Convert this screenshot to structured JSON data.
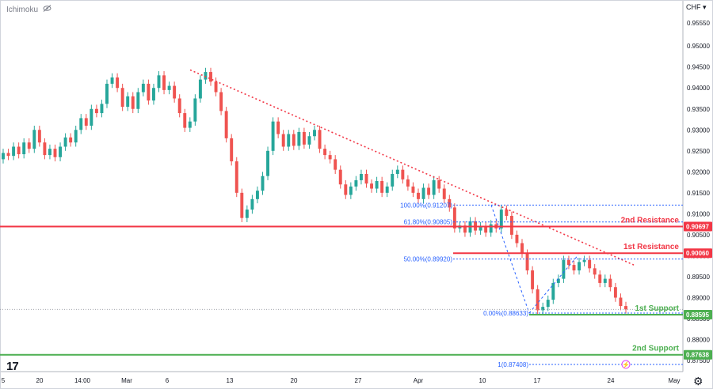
{
  "header": {
    "indicator": "Ichimoku",
    "currency": "CHF"
  },
  "icons": {
    "visibility": "eye-off-icon",
    "settings": "gear-icon",
    "logo": "tradingview-logo-icon",
    "alert": "lightning-icon"
  },
  "logo_text": "17",
  "chart_data": {
    "type": "candlestick",
    "y_ticks": [
      "0.95550",
      "0.95000",
      "0.94500",
      "0.94000",
      "0.93500",
      "0.93000",
      "0.92500",
      "0.92000",
      "0.91500",
      "0.91000",
      "0.90500",
      "0.90000",
      "0.89500",
      "0.89000",
      "0.88500",
      "0.88000",
      "0.87500"
    ],
    "ylim": [
      0.8735,
      0.9575
    ],
    "x_ticks": [
      "5",
      "20",
      "14:00",
      "Mar",
      "6",
      "13",
      "20",
      "27",
      "Apr",
      "10",
      "17",
      "24",
      "May"
    ],
    "colors": {
      "up": "#26a69a",
      "down": "#ef5350",
      "resistance": "#f23645",
      "support": "#4caf50",
      "fib": "#2962ff",
      "trend": "#f23645"
    },
    "levels": [
      {
        "name": "2nd Resistance",
        "price": 0.90697,
        "price_label": "0.90697",
        "color": "#f23645"
      },
      {
        "name": "1st Resistance",
        "price": 0.9006,
        "price_label": "0.90060",
        "color": "#f23645"
      },
      {
        "name": "1st Support",
        "price": 0.88595,
        "price_label": "0.88595",
        "color": "#4caf50"
      },
      {
        "name": "2nd Support",
        "price": 0.87638,
        "price_label": "0.87638",
        "color": "#4caf50"
      }
    ],
    "fibonacci": [
      {
        "label": "100.00%(0.91207)",
        "price": 0.91207
      },
      {
        "label": "61.80%(0.90805)",
        "price": 0.90805
      },
      {
        "label": "50.00%(0.89920)",
        "price": 0.8992
      },
      {
        "label": "0.00%(0.88633)",
        "price": 0.88633
      },
      {
        "label": "1(0.87408)",
        "price": 0.87408
      }
    ],
    "trendline": {
      "from_price": 0.9443,
      "to_price": 0.8978,
      "style": "dotted"
    },
    "current_price": 0.8872,
    "candles": [
      [
        0.923,
        0.9245
      ],
      [
        0.9245,
        0.9238
      ],
      [
        0.9238,
        0.926
      ],
      [
        0.926,
        0.9242
      ],
      [
        0.9242,
        0.927
      ],
      [
        0.927,
        0.9255
      ],
      [
        0.9255,
        0.93
      ],
      [
        0.93,
        0.927
      ],
      [
        0.927,
        0.924
      ],
      [
        0.924,
        0.9255
      ],
      [
        0.9255,
        0.9235
      ],
      [
        0.9235,
        0.926
      ],
      [
        0.926,
        0.9282
      ],
      [
        0.9282,
        0.927
      ],
      [
        0.927,
        0.93
      ],
      [
        0.93,
        0.9328
      ],
      [
        0.9328,
        0.931
      ],
      [
        0.931,
        0.935
      ],
      [
        0.935,
        0.934
      ],
      [
        0.934,
        0.9362
      ],
      [
        0.9362,
        0.941
      ],
      [
        0.941,
        0.9425
      ],
      [
        0.9425,
        0.94
      ],
      [
        0.94,
        0.9355
      ],
      [
        0.9355,
        0.938
      ],
      [
        0.938,
        0.935
      ],
      [
        0.935,
        0.939
      ],
      [
        0.939,
        0.941
      ],
      [
        0.941,
        0.937
      ],
      [
        0.937,
        0.94
      ],
      [
        0.94,
        0.943
      ],
      [
        0.943,
        0.9395
      ],
      [
        0.9395,
        0.9405
      ],
      [
        0.9405,
        0.9375
      ],
      [
        0.9375,
        0.934
      ],
      [
        0.934,
        0.9305
      ],
      [
        0.9305,
        0.932
      ],
      [
        0.932,
        0.9375
      ],
      [
        0.9375,
        0.942
      ],
      [
        0.942,
        0.9438
      ],
      [
        0.9438,
        0.9415
      ],
      [
        0.9415,
        0.939
      ],
      [
        0.939,
        0.9345
      ],
      [
        0.9345,
        0.928
      ],
      [
        0.928,
        0.9225
      ],
      [
        0.9225,
        0.915
      ],
      [
        0.915,
        0.909
      ],
      [
        0.909,
        0.911
      ],
      [
        0.911,
        0.9135
      ],
      [
        0.9135,
        0.9155
      ],
      [
        0.9155,
        0.919
      ],
      [
        0.919,
        0.925
      ],
      [
        0.925,
        0.932
      ],
      [
        0.932,
        0.929
      ],
      [
        0.929,
        0.926
      ],
      [
        0.926,
        0.929
      ],
      [
        0.929,
        0.9262
      ],
      [
        0.9262,
        0.9295
      ],
      [
        0.9295,
        0.9265
      ],
      [
        0.9265,
        0.9285
      ],
      [
        0.9285,
        0.93
      ],
      [
        0.93,
        0.9255
      ],
      [
        0.9255,
        0.924
      ],
      [
        0.924,
        0.923
      ],
      [
        0.923,
        0.9205
      ],
      [
        0.9205,
        0.917
      ],
      [
        0.917,
        0.9145
      ],
      [
        0.9145,
        0.9165
      ],
      [
        0.9165,
        0.918
      ],
      [
        0.918,
        0.9195
      ],
      [
        0.9195,
        0.9172
      ],
      [
        0.9172,
        0.916
      ],
      [
        0.916,
        0.9178
      ],
      [
        0.9178,
        0.915
      ],
      [
        0.915,
        0.9165
      ],
      [
        0.9165,
        0.9195
      ],
      [
        0.9195,
        0.9205
      ],
      [
        0.9205,
        0.9182
      ],
      [
        0.9182,
        0.9165
      ],
      [
        0.9165,
        0.915
      ],
      [
        0.915,
        0.9135
      ],
      [
        0.9135,
        0.9162
      ],
      [
        0.9162,
        0.9145
      ],
      [
        0.9145,
        0.918
      ],
      [
        0.918,
        0.916
      ],
      [
        0.916,
        0.9135
      ],
      [
        0.9135,
        0.9115
      ],
      [
        0.9115,
        0.9065
      ],
      [
        0.9065,
        0.9072
      ],
      [
        0.9072,
        0.9055
      ],
      [
        0.9055,
        0.9082
      ],
      [
        0.9082,
        0.906
      ],
      [
        0.906,
        0.907
      ],
      [
        0.907,
        0.9055
      ],
      [
        0.9055,
        0.9075
      ],
      [
        0.9075,
        0.9065
      ],
      [
        0.9065,
        0.911
      ],
      [
        0.911,
        0.9095
      ],
      [
        0.9095,
        0.905
      ],
      [
        0.905,
        0.903
      ],
      [
        0.903,
        0.9005
      ],
      [
        0.9005,
        0.8965
      ],
      [
        0.8965,
        0.892
      ],
      [
        0.892,
        0.887
      ],
      [
        0.887,
        0.8878
      ],
      [
        0.8878,
        0.8895
      ],
      [
        0.8895,
        0.8935
      ],
      [
        0.8935,
        0.8945
      ],
      [
        0.8945,
        0.899
      ],
      [
        0.899,
        0.8978
      ],
      [
        0.8978,
        0.8965
      ],
      [
        0.8965,
        0.8985
      ],
      [
        0.8985,
        0.899
      ],
      [
        0.899,
        0.897
      ],
      [
        0.897,
        0.8955
      ],
      [
        0.8955,
        0.8935
      ],
      [
        0.8935,
        0.8945
      ],
      [
        0.8945,
        0.8925
      ],
      [
        0.8925,
        0.89
      ],
      [
        0.89,
        0.888
      ],
      [
        0.888,
        0.8872
      ]
    ]
  }
}
